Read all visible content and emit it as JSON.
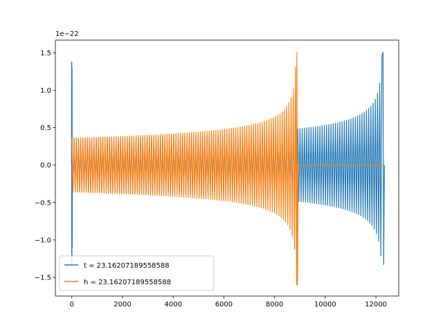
{
  "chart_data": {
    "type": "line",
    "title": "",
    "xlabel": "",
    "ylabel": "",
    "y_offset_label": "1e−22",
    "xlim": [
      -650,
      12900
    ],
    "ylim": [
      -1.75,
      1.67
    ],
    "x_ticks": [
      0,
      2000,
      4000,
      6000,
      8000,
      10000,
      12000
    ],
    "x_tick_labels": [
      "0",
      "2000",
      "4000",
      "6000",
      "8000",
      "10000",
      "12000"
    ],
    "y_ticks": [
      -1.5,
      -1.0,
      -0.5,
      0.0,
      0.5,
      1.0,
      1.5
    ],
    "y_tick_labels": [
      "−1.5",
      "−1.0",
      "−0.5",
      "0.0",
      "0.5",
      "1.0",
      "1.5"
    ],
    "grid": false,
    "legend_position": "lower-left",
    "series": [
      {
        "name": "t = 23.16207189558588",
        "color": "#1f77b4",
        "description": "chirp waveform: initial spike near x=0, then oscillation growing from amplitude ~0.35 to ~1.5 at x~12280, zero after",
        "start_x": 0,
        "merger_x": 12280,
        "end_x": 12300,
        "start_amplitude": 0.35,
        "peak_max": 1.51,
        "peak_min": -1.33,
        "initial_spike_max": 1.38,
        "initial_spike_min": -1.33
      },
      {
        "name": "h = 23.16207189558588",
        "color": "#ff7f0e",
        "description": "chirp waveform oscillating from amplitude ~0.36 growing to ~1.5 at x~8880, then flat at 0 until x~12300",
        "start_x": 0,
        "merger_x": 8880,
        "end_x": 12300,
        "start_amplitude": 0.36,
        "peak_max": 1.51,
        "peak_min": -1.6
      }
    ]
  }
}
